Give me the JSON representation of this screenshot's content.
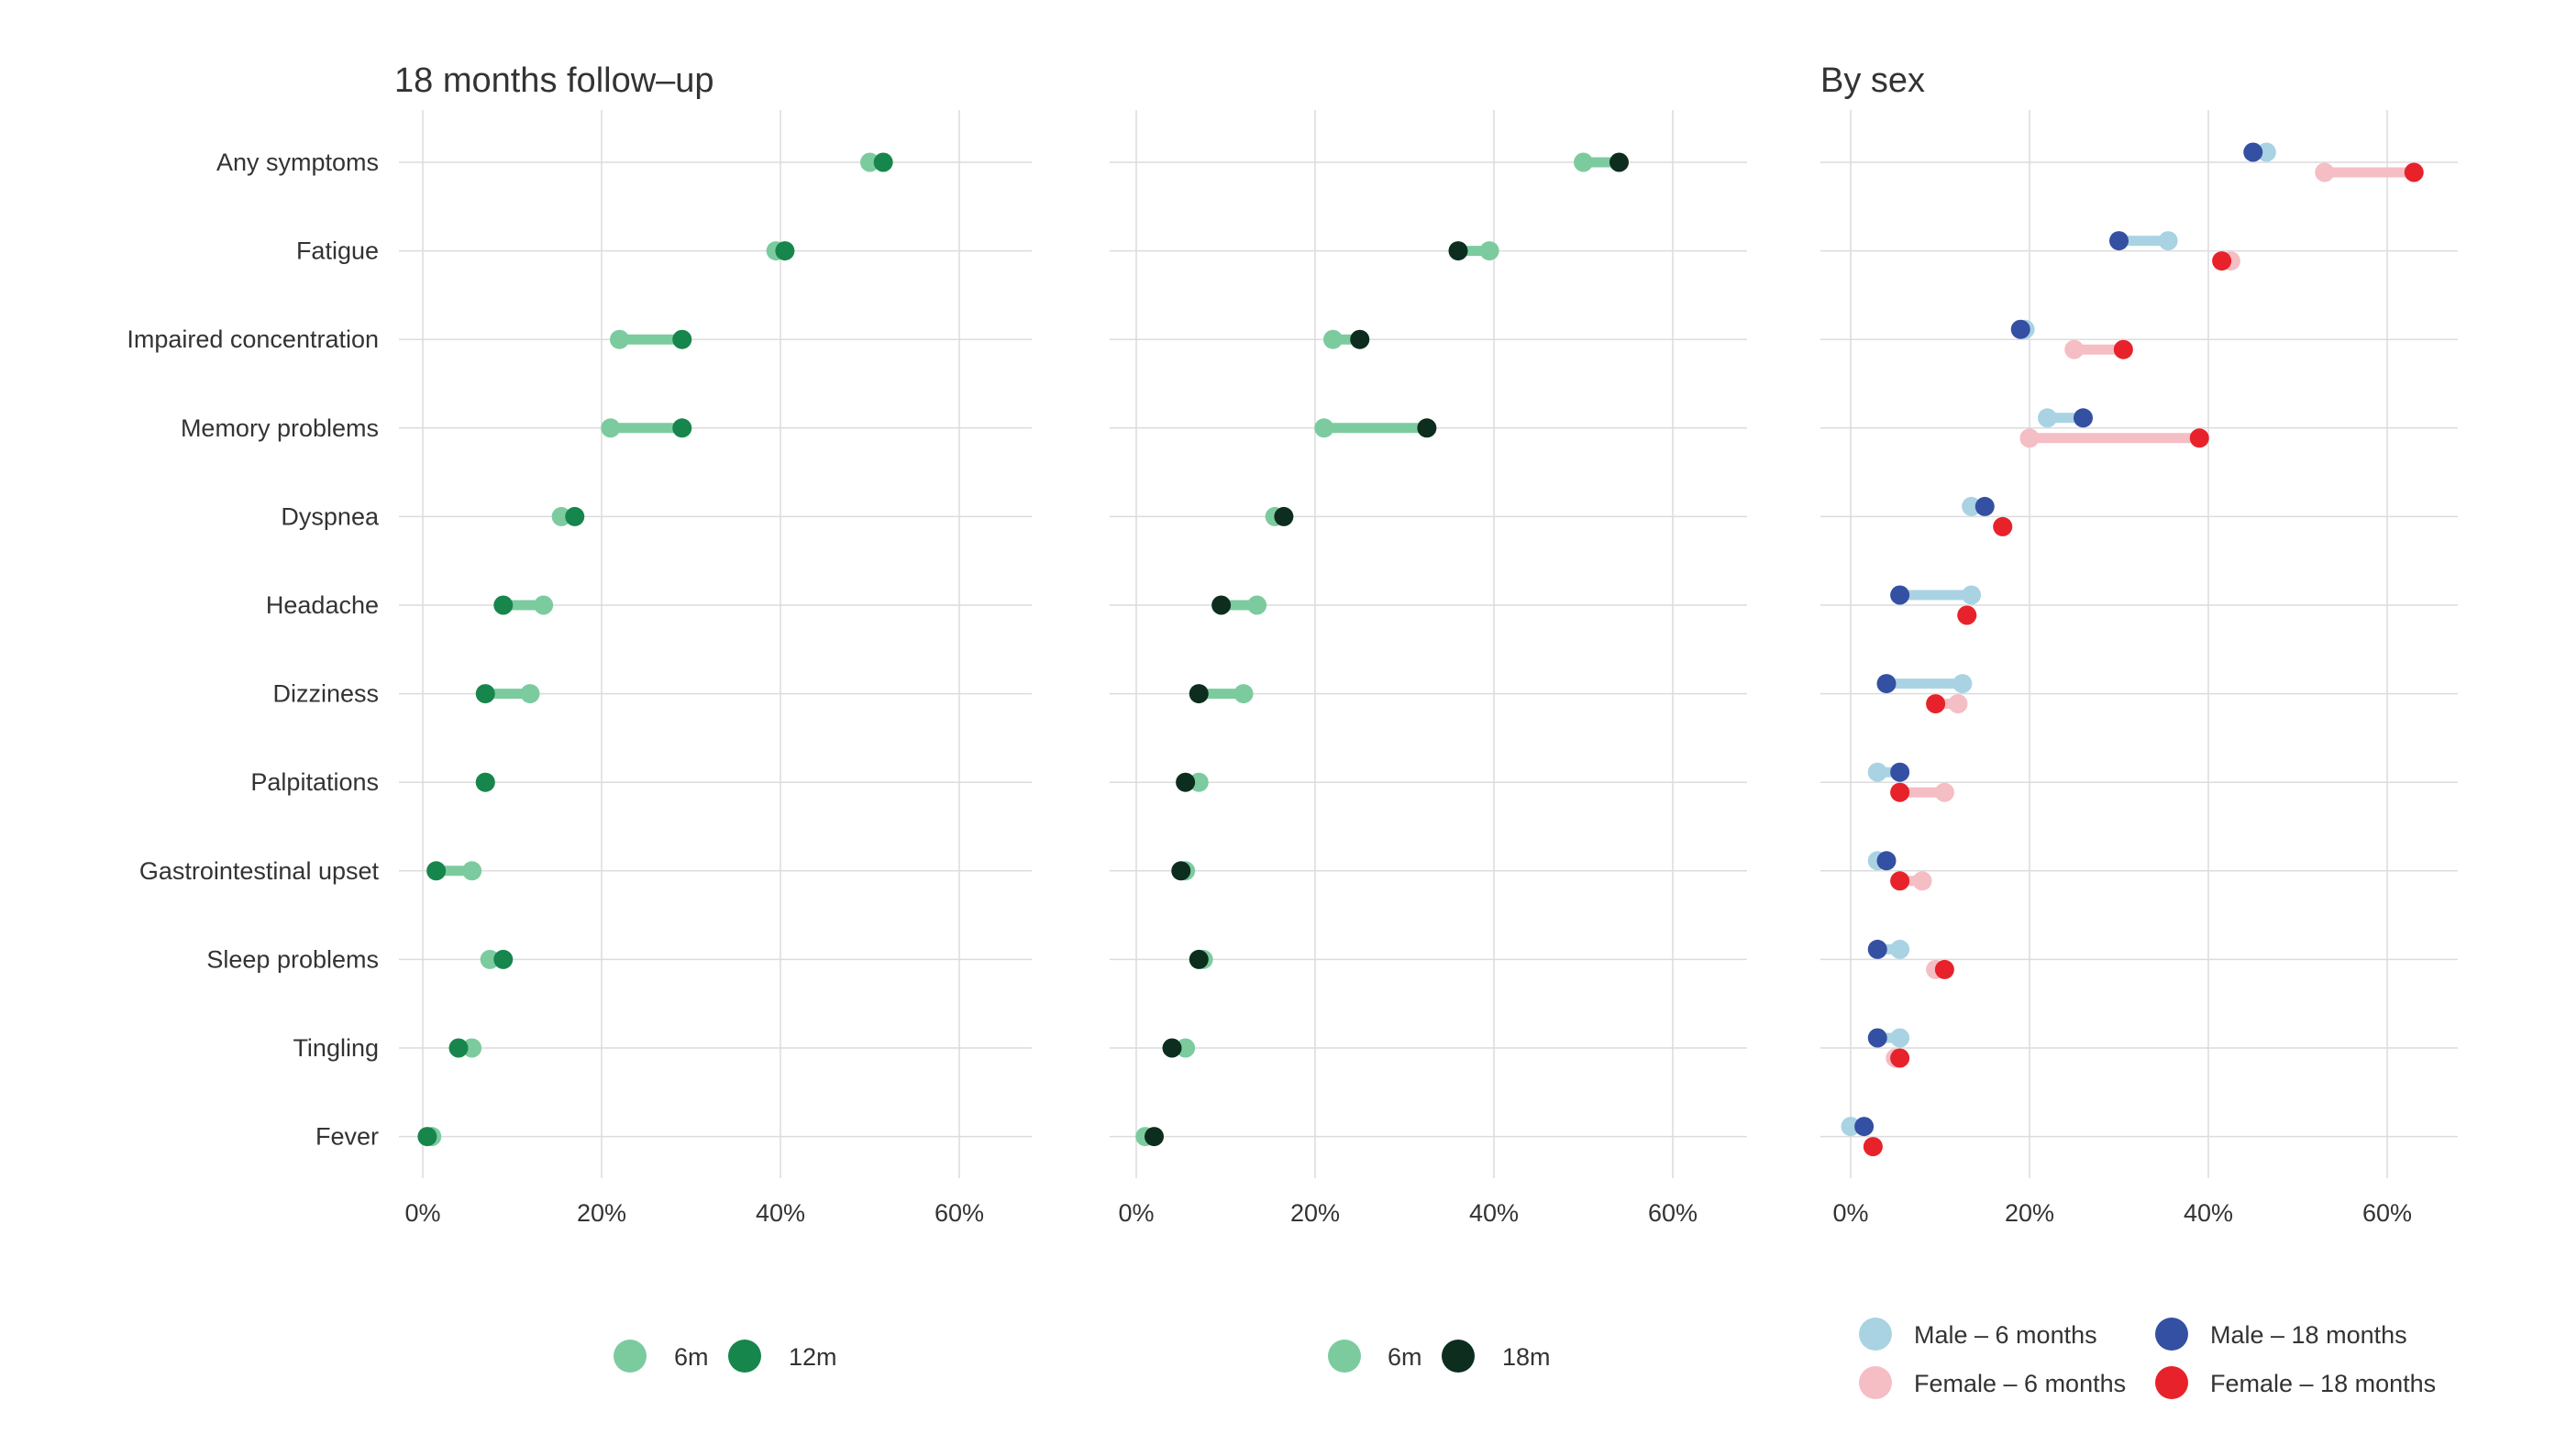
{
  "chart_data": [
    {
      "type": "dumbbell",
      "title": "18 months follow–up",
      "categories": [
        "Any symptoms",
        "Fatigue",
        "Impaired concentration",
        "Memory problems",
        "Dyspnea",
        "Headache",
        "Dizziness",
        "Palpitations",
        "Gastrointestinal upset",
        "Sleep problems",
        "Tingling",
        "Fever"
      ],
      "xlim": [
        0,
        68
      ],
      "xticks": [
        0,
        20,
        40,
        60
      ],
      "xtick_labels": [
        "0%",
        "20%",
        "40%",
        "60%"
      ],
      "series": [
        {
          "name": "6m",
          "color": "#7ccb9f",
          "values": [
            50,
            39.5,
            22,
            21,
            15.5,
            13.5,
            12,
            7,
            5.5,
            7.5,
            5.5,
            1
          ]
        },
        {
          "name": "12m",
          "color": "#17864c",
          "values": [
            51.5,
            40.5,
            29,
            29,
            17,
            9,
            7,
            7,
            1.5,
            9,
            4,
            0.5
          ]
        }
      ],
      "legend": {
        "position": "bottom",
        "items": [
          {
            "label": "6m",
            "color": "#7ccb9f"
          },
          {
            "label": "12m",
            "color": "#17864c"
          }
        ]
      }
    },
    {
      "type": "dumbbell",
      "title": "",
      "categories": [
        "Any symptoms",
        "Fatigue",
        "Impaired concentration",
        "Memory problems",
        "Dyspnea",
        "Headache",
        "Dizziness",
        "Palpitations",
        "Gastrointestinal upset",
        "Sleep problems",
        "Tingling",
        "Fever"
      ],
      "xlim": [
        0,
        68
      ],
      "xticks": [
        0,
        20,
        40,
        60
      ],
      "xtick_labels": [
        "0%",
        "20%",
        "40%",
        "60%"
      ],
      "series": [
        {
          "name": "6m",
          "color": "#7ccb9f",
          "values": [
            50,
            39.5,
            22,
            21,
            15.5,
            13.5,
            12,
            7,
            5.5,
            7.5,
            5.5,
            1
          ]
        },
        {
          "name": "18m",
          "color": "#0d2e1e",
          "values": [
            54,
            36,
            25,
            32.5,
            16.5,
            9.5,
            7,
            5.5,
            5,
            7,
            4,
            2
          ]
        }
      ],
      "legend": {
        "position": "bottom",
        "items": [
          {
            "label": "6m",
            "color": "#7ccb9f"
          },
          {
            "label": "18m",
            "color": "#0d2e1e"
          }
        ]
      }
    },
    {
      "type": "dumbbell",
      "title": "By sex",
      "categories": [
        "Any symptoms",
        "Fatigue",
        "Impaired concentration",
        "Memory problems",
        "Dyspnea",
        "Headache",
        "Dizziness",
        "Palpitations",
        "Gastrointestinal upset",
        "Sleep problems",
        "Tingling",
        "Fever"
      ],
      "xlim": [
        0,
        68
      ],
      "xticks": [
        0,
        20,
        40,
        60
      ],
      "xtick_labels": [
        "0%",
        "20%",
        "40%",
        "60%"
      ],
      "series": [
        {
          "name": "Male – 6 months",
          "color": "#a9d3e3",
          "group": "male",
          "stage": "6",
          "values": [
            46.5,
            35.5,
            19.5,
            22,
            13.5,
            13.5,
            12.5,
            3,
            3,
            5.5,
            5.5,
            0
          ]
        },
        {
          "name": "Male – 18 months",
          "color": "#3450a3",
          "group": "male",
          "stage": "18",
          "values": [
            45,
            30,
            19,
            26,
            15,
            5.5,
            4,
            5.5,
            4,
            3,
            3,
            1.5
          ]
        },
        {
          "name": "Female – 6 months",
          "color": "#f5bdc4",
          "group": "female",
          "stage": "6",
          "values": [
            53,
            42.5,
            25,
            20,
            17,
            13,
            12,
            10.5,
            8,
            9.5,
            5,
            2.5
          ]
        },
        {
          "name": "Female – 18 months",
          "color": "#e8222b",
          "group": "female",
          "stage": "18",
          "values": [
            63,
            41.5,
            30.5,
            39,
            17,
            13,
            9.5,
            5.5,
            5.5,
            10.5,
            5.5,
            2.5
          ]
        }
      ],
      "legend": {
        "position": "bottom",
        "items": [
          {
            "label": "Male – 6 months",
            "color": "#a9d3e3"
          },
          {
            "label": "Male – 18 months",
            "color": "#3450a3"
          },
          {
            "label": "Female – 6 months",
            "color": "#f5bdc4"
          },
          {
            "label": "Female – 18 months",
            "color": "#e8222b"
          }
        ]
      }
    }
  ]
}
